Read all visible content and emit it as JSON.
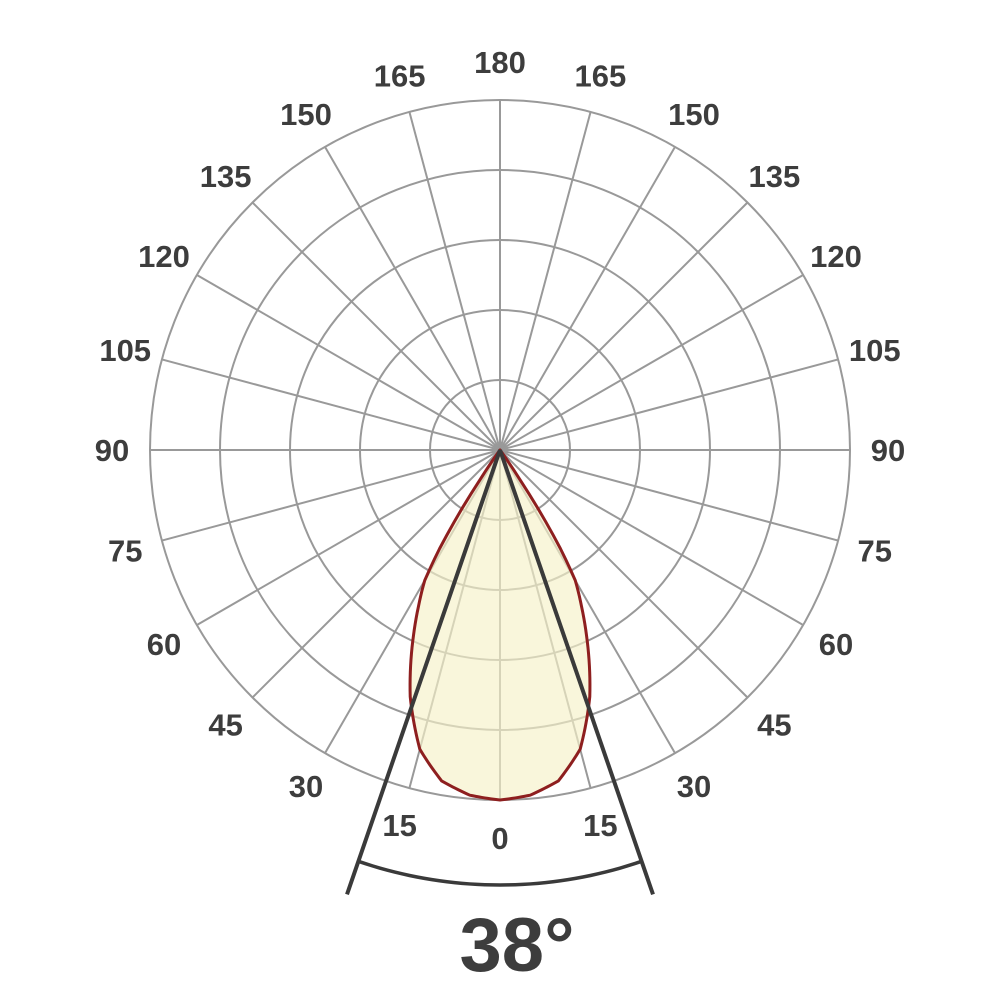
{
  "chart_data": {
    "type": "polar",
    "subtype": "photometric-luminous-intensity-distribution",
    "title": "",
    "beam_angle": {
      "label": "38°",
      "value_deg": 38,
      "half_angle_deg": 19
    },
    "angular_axis": {
      "unit": "degrees",
      "zero_position": "bottom",
      "tick_step_deg": 15,
      "tick_values_deg": [
        0,
        15,
        30,
        45,
        60,
        75,
        90,
        105,
        120,
        135,
        150,
        165,
        180
      ],
      "tick_labels": [
        "0",
        "15",
        "30",
        "45",
        "60",
        "75",
        "90",
        "105",
        "120",
        "135",
        "150",
        "165",
        "180"
      ],
      "labels_mirrored_both_sides": true
    },
    "radial_axis": {
      "rings": 5,
      "ring_values_relative": [
        0.2,
        0.4,
        0.6,
        0.8,
        1.0
      ],
      "tick_labels_shown": false
    },
    "series": [
      {
        "name": "relative-intensity-lobe",
        "symmetric_about_nadir": true,
        "angle_from_nadir_deg": [
          0,
          5,
          10,
          15,
          20,
          25,
          27.5,
          30,
          31.5,
          33,
          34,
          35,
          36,
          37
        ],
        "relative_intensity": [
          1.0,
          0.99,
          0.96,
          0.885,
          0.75,
          0.585,
          0.505,
          0.43,
          0.33,
          0.2,
          0.1,
          0.045,
          0.012,
          0.0
        ]
      }
    ],
    "colors": {
      "background": "#ffffff",
      "grid": "#999999",
      "tick_label": "#3d3d3d",
      "curve_stroke": "#8e1f1f",
      "curve_fill": "#f6f2c8",
      "curve_fill_opacity": 0.66,
      "beam_marker": "#3a3a3a",
      "beam_label": "#3d3d3d"
    },
    "layout_hints": {
      "grid_on": true,
      "legend": "none",
      "beam_marker_lines_at_deg": [
        -19,
        19
      ],
      "beam_arc_between_marker_lines": true
    }
  }
}
